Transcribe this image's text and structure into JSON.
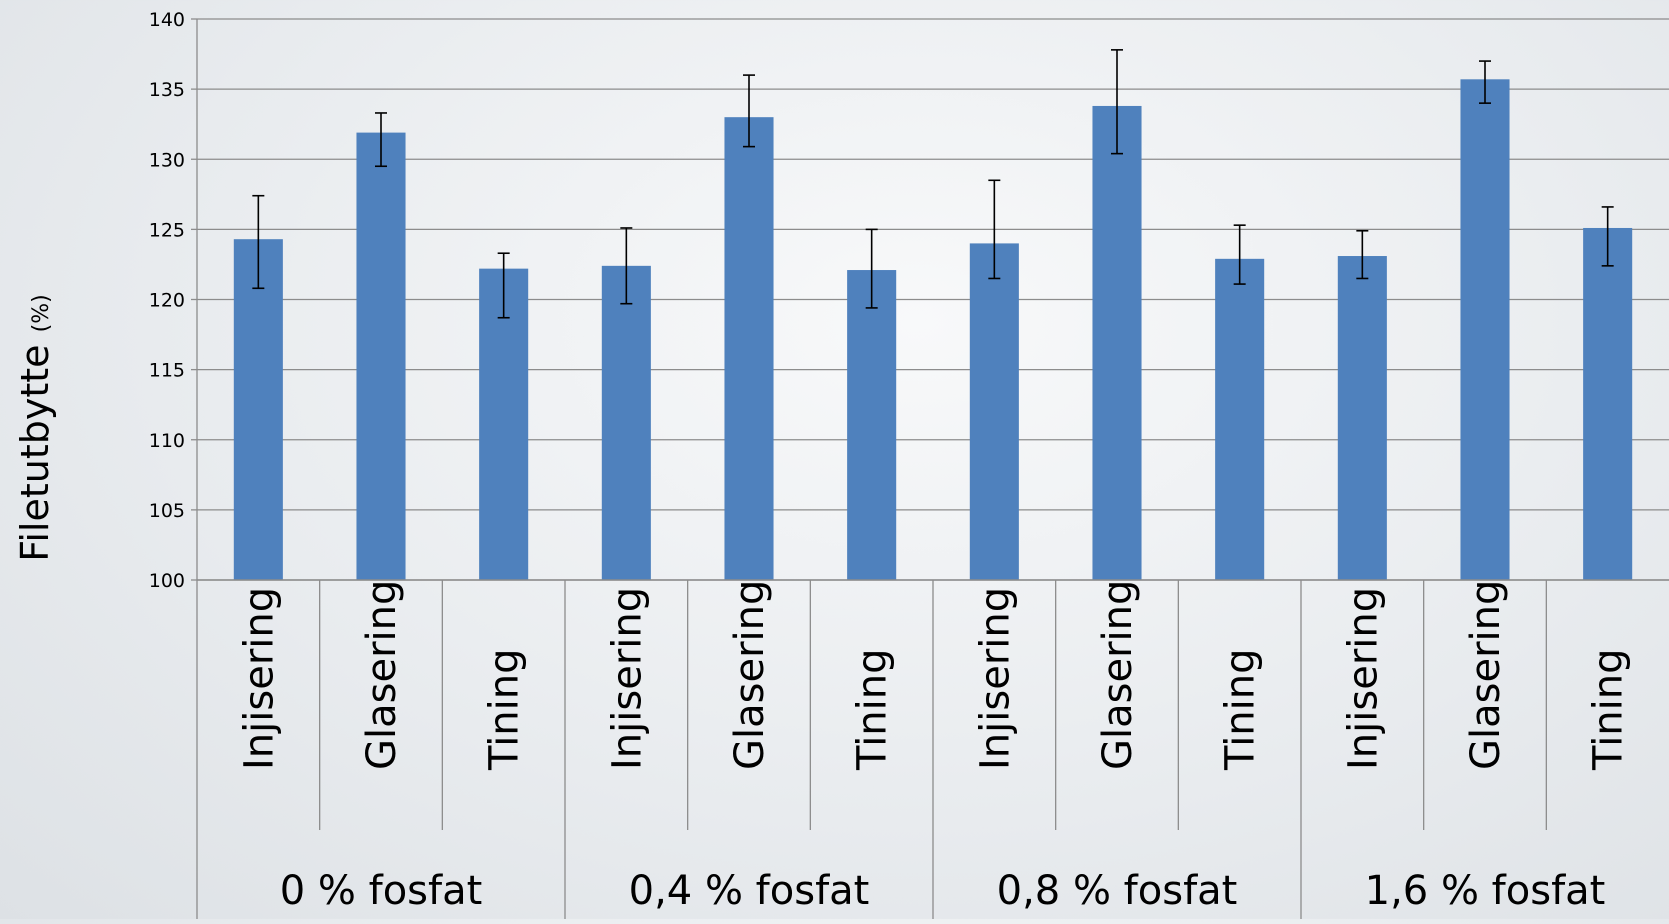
{
  "chart_data": {
    "type": "bar",
    "ylabel": "Filetutbytte",
    "ylabel_unit": "(%)",
    "ylim": [
      100,
      140
    ],
    "yticks": [
      100,
      105,
      110,
      115,
      120,
      125,
      130,
      135,
      140
    ],
    "ytick_labels": [
      "100",
      "105",
      "110",
      "115",
      "120",
      "125",
      "130",
      "135",
      "140"
    ],
    "grid": true,
    "bar_color": "#4f81bd",
    "categories": [
      "Injisering",
      "Glasering",
      "Tining",
      "Injisering",
      "Glasering",
      "Tining",
      "Injisering",
      "Glasering",
      "Tining",
      "Injisering",
      "Glasering",
      "Tining"
    ],
    "groups": [
      {
        "label": "0 % fosfat",
        "size": 3
      },
      {
        "label": "0,4 % fosfat",
        "size": 3
      },
      {
        "label": "0,8 % fosfat",
        "size": 3
      },
      {
        "label": "1,6 % fosfat",
        "size": 3
      }
    ],
    "values": [
      124.3,
      131.9,
      122.2,
      122.4,
      133.0,
      122.1,
      124.0,
      133.8,
      122.9,
      123.1,
      135.7,
      125.1
    ],
    "error_low": [
      120.8,
      129.5,
      118.7,
      119.7,
      130.9,
      119.4,
      121.5,
      130.4,
      121.1,
      121.5,
      134.0,
      122.4
    ],
    "error_high": [
      127.4,
      133.3,
      123.3,
      125.1,
      136.0,
      125.0,
      128.5,
      137.8,
      125.3,
      124.9,
      137.0,
      126.6
    ]
  }
}
